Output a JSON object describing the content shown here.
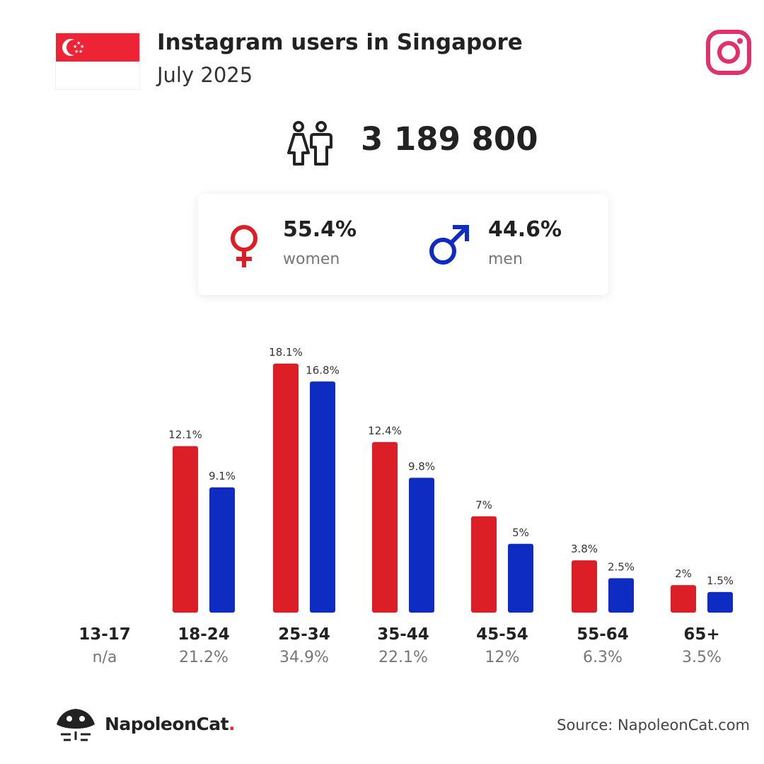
{
  "header": {
    "title": "Instagram users in Singapore",
    "subtitle": "July 2025"
  },
  "total_users": "3 189 800",
  "gender": {
    "women": {
      "pct": "55.4%",
      "label": "women",
      "color": "#dc1f26"
    },
    "men": {
      "pct": "44.6%",
      "label": "men",
      "color": "#0f2cc2"
    }
  },
  "icons": {
    "flag": "singapore-flag-icon",
    "platform": "instagram-icon",
    "people": "people-icon",
    "female": "female-symbol-icon",
    "male": "male-symbol-icon",
    "brand": "napoleoncat-logo-icon"
  },
  "chart_data": {
    "type": "bar",
    "categories": [
      "13-17",
      "18-24",
      "25-34",
      "35-44",
      "45-54",
      "55-64",
      "65+"
    ],
    "category_totals": [
      "n/a",
      "21.2%",
      "34.9%",
      "22.1%",
      "12%",
      "6.3%",
      "3.5%"
    ],
    "series": [
      {
        "color": "#dc1f26",
        "values": [
          null,
          12.1,
          18.1,
          12.4,
          7,
          3.8,
          2
        ],
        "labels": [
          null,
          "12.1%",
          "18.1%",
          "12.4%",
          "7%",
          "3.8%",
          "2%"
        ]
      },
      {
        "color": "#0f2cc2",
        "values": [
          null,
          9.1,
          16.8,
          9.8,
          5,
          2.5,
          1.5
        ],
        "labels": [
          null,
          "9.1%",
          "16.8%",
          "9.8%",
          "5%",
          "2.5%",
          "1.5%"
        ]
      }
    ],
    "ylim": [
      0,
      18.1
    ]
  },
  "footer": {
    "brand_name": "NapoleonCat",
    "brand_dot": ".",
    "source": "Source: NapoleonCat.com"
  }
}
